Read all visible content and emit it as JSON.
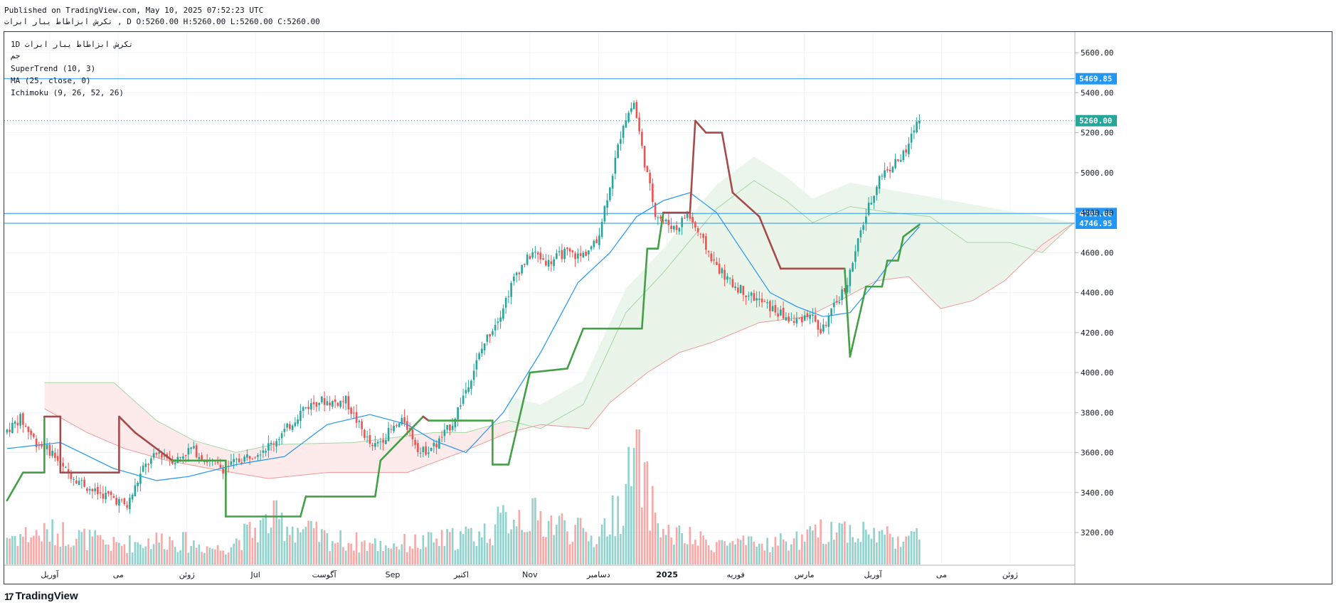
{
  "header": {
    "published": "Published on TradingView.com, May 10, 2025 07:52:23 UTC",
    "ohlc_line": "تكرش ابزاطاط يبار ابرات , D O:5260.00 H:5260.00 L:5260.00 C:5260.00"
  },
  "legend": {
    "symbol": "1D  تكرش ابزاطاط يبار ابرات",
    "exchange": "جم",
    "supertrend": "SuperTrend (10, 3)",
    "ma": "MA (25, close, 0)",
    "ichimoku": "Ichimoku (9, 26, 52, 26)"
  },
  "footer": {
    "brand": "TradingView",
    "logo_icon": "tradingview-logo-icon"
  },
  "colors": {
    "up": "#26a69a",
    "down": "#ef5350",
    "supertrend_up": "#43a047",
    "supertrend_down": "#a64b4b",
    "ma": "#2196f3",
    "cloud_bull": "#e8f5e9",
    "cloud_bear": "#fde8e8",
    "hline": "#2196f3",
    "last_price": "#26a69a"
  },
  "chart_data": {
    "type": "candlestick",
    "ylim": [
      3040,
      5700
    ],
    "y_ticks": [
      3200,
      3400,
      3600,
      3800,
      4000,
      4200,
      4400,
      4600,
      4800,
      5000,
      5200,
      5400,
      5600
    ],
    "x_labels": [
      "آوريل",
      "مى",
      "ژوئن",
      "Jul",
      "آگوست",
      "Sep",
      "اكتبر",
      "Nov",
      "دسامبر",
      "2025",
      "فوريه",
      "مارس",
      "آوريل",
      "مى",
      "ژوئن"
    ],
    "horizontal_lines": [
      {
        "value": 5469.85,
        "label": "5469.85"
      },
      {
        "value": 4795.66,
        "label": "4795.66"
      },
      {
        "value": 4746.95,
        "label": "4746.95"
      }
    ],
    "last_price": {
      "value": 5260.0,
      "label": "5260.00"
    },
    "price_path": [
      [
        0,
        3700
      ],
      [
        6,
        3770
      ],
      [
        12,
        3650
      ],
      [
        18,
        3600
      ],
      [
        22,
        3520
      ],
      [
        28,
        3460
      ],
      [
        34,
        3400
      ],
      [
        40,
        3380
      ],
      [
        46,
        3330
      ],
      [
        52,
        3520
      ],
      [
        58,
        3600
      ],
      [
        64,
        3560
      ],
      [
        70,
        3620
      ],
      [
        76,
        3560
      ],
      [
        82,
        3520
      ],
      [
        88,
        3560
      ],
      [
        94,
        3600
      ],
      [
        100,
        3640
      ],
      [
        106,
        3720
      ],
      [
        112,
        3820
      ],
      [
        118,
        3860
      ],
      [
        124,
        3850
      ],
      [
        128,
        3860
      ],
      [
        132,
        3760
      ],
      [
        138,
        3620
      ],
      [
        144,
        3700
      ],
      [
        150,
        3760
      ],
      [
        156,
        3600
      ],
      [
        162,
        3640
      ],
      [
        168,
        3750
      ],
      [
        174,
        3950
      ],
      [
        180,
        4150
      ],
      [
        186,
        4300
      ],
      [
        192,
        4500
      ],
      [
        198,
        4600
      ],
      [
        204,
        4550
      ],
      [
        210,
        4600
      ],
      [
        216,
        4580
      ],
      [
        222,
        4650
      ],
      [
        228,
        5000
      ],
      [
        232,
        5250
      ],
      [
        236,
        5350
      ],
      [
        240,
        5050
      ],
      [
        244,
        4800
      ],
      [
        248,
        4750
      ],
      [
        252,
        4720
      ],
      [
        256,
        4800
      ],
      [
        260,
        4700
      ],
      [
        266,
        4550
      ],
      [
        272,
        4450
      ],
      [
        278,
        4400
      ],
      [
        284,
        4350
      ],
      [
        290,
        4300
      ],
      [
        296,
        4250
      ],
      [
        302,
        4300
      ],
      [
        306,
        4200
      ],
      [
        310,
        4300
      ],
      [
        316,
        4450
      ],
      [
        322,
        4750
      ],
      [
        328,
        4980
      ],
      [
        334,
        5050
      ],
      [
        338,
        5100
      ],
      [
        342,
        5260
      ]
    ],
    "volume_profile": [
      [
        0,
        0.22
      ],
      [
        20,
        0.25
      ],
      [
        40,
        0.15
      ],
      [
        60,
        0.2
      ],
      [
        80,
        0.12
      ],
      [
        100,
        0.35
      ],
      [
        120,
        0.2
      ],
      [
        140,
        0.15
      ],
      [
        160,
        0.18
      ],
      [
        180,
        0.25
      ],
      [
        190,
        0.4
      ],
      [
        200,
        0.35
      ],
      [
        210,
        0.3
      ],
      [
        220,
        0.2
      ],
      [
        230,
        0.45
      ],
      [
        236,
        0.85
      ],
      [
        240,
        0.55
      ],
      [
        246,
        0.25
      ],
      [
        260,
        0.18
      ],
      [
        280,
        0.15
      ],
      [
        300,
        0.2
      ],
      [
        310,
        0.3
      ],
      [
        320,
        0.25
      ],
      [
        342,
        0.2
      ]
    ],
    "ma_series": [
      [
        0,
        3620
      ],
      [
        20,
        3650
      ],
      [
        40,
        3520
      ],
      [
        56,
        3460
      ],
      [
        68,
        3480
      ],
      [
        86,
        3540
      ],
      [
        104,
        3580
      ],
      [
        120,
        3740
      ],
      [
        136,
        3790
      ],
      [
        150,
        3740
      ],
      [
        160,
        3660
      ],
      [
        172,
        3600
      ],
      [
        186,
        3800
      ],
      [
        200,
        4100
      ],
      [
        214,
        4450
      ],
      [
        226,
        4600
      ],
      [
        236,
        4780
      ],
      [
        246,
        4860
      ],
      [
        256,
        4900
      ],
      [
        266,
        4800
      ],
      [
        276,
        4600
      ],
      [
        286,
        4400
      ],
      [
        296,
        4330
      ],
      [
        306,
        4280
      ],
      [
        316,
        4300
      ],
      [
        326,
        4460
      ],
      [
        336,
        4640
      ],
      [
        342,
        4730
      ]
    ],
    "supertrend_series": [
      [
        0,
        3360
      ],
      [
        6,
        3500
      ],
      [
        14,
        3500
      ],
      [
        14,
        3780
      ],
      [
        20,
        3780
      ],
      [
        20,
        3500
      ],
      [
        42,
        3500
      ],
      [
        42,
        3780
      ],
      [
        48,
        3700
      ],
      [
        62,
        3560
      ],
      [
        82,
        3560
      ],
      [
        82,
        3280
      ],
      [
        110,
        3280
      ],
      [
        112,
        3380
      ],
      [
        138,
        3380
      ],
      [
        140,
        3560
      ],
      [
        156,
        3780
      ],
      [
        158,
        3760
      ],
      [
        182,
        3760
      ],
      [
        182,
        3540
      ],
      [
        188,
        3540
      ],
      [
        196,
        4000
      ],
      [
        210,
        4020
      ],
      [
        216,
        4220
      ],
      [
        238,
        4220
      ],
      [
        240,
        4620
      ],
      [
        244,
        4620
      ],
      [
        246,
        4800
      ],
      [
        256,
        4800
      ],
      [
        258,
        5260
      ],
      [
        262,
        5200
      ],
      [
        268,
        5200
      ],
      [
        272,
        4900
      ],
      [
        282,
        4780
      ],
      [
        290,
        4520
      ],
      [
        314,
        4520
      ],
      [
        316,
        4080
      ],
      [
        322,
        4430
      ],
      [
        328,
        4430
      ],
      [
        330,
        4560
      ],
      [
        334,
        4560
      ],
      [
        336,
        4680
      ],
      [
        342,
        4740
      ]
    ],
    "cloud_upper": [
      [
        14,
        3950
      ],
      [
        40,
        3950
      ],
      [
        56,
        3760
      ],
      [
        70,
        3660
      ],
      [
        86,
        3600
      ],
      [
        100,
        3640
      ],
      [
        130,
        3650
      ],
      [
        160,
        3700
      ],
      [
        172,
        3700
      ],
      [
        188,
        3760
      ],
      [
        200,
        3720
      ],
      [
        216,
        3840
      ],
      [
        232,
        4300
      ],
      [
        246,
        4500
      ],
      [
        256,
        4660
      ],
      [
        266,
        4820
      ],
      [
        280,
        4960
      ],
      [
        292,
        4860
      ],
      [
        302,
        4750
      ],
      [
        316,
        4830
      ],
      [
        332,
        4800
      ],
      [
        346,
        4780
      ],
      [
        360,
        4650
      ],
      [
        376,
        4650
      ],
      [
        388,
        4600
      ],
      [
        400,
        4750
      ]
    ],
    "cloud_lower": [
      [
        14,
        3820
      ],
      [
        30,
        3700
      ],
      [
        44,
        3620
      ],
      [
        60,
        3560
      ],
      [
        80,
        3510
      ],
      [
        98,
        3470
      ],
      [
        120,
        3500
      ],
      [
        150,
        3500
      ],
      [
        170,
        3600
      ],
      [
        188,
        3700
      ],
      [
        200,
        3740
      ],
      [
        218,
        3720
      ],
      [
        226,
        3850
      ],
      [
        240,
        4000
      ],
      [
        252,
        4100
      ],
      [
        264,
        4150
      ],
      [
        282,
        4250
      ],
      [
        300,
        4280
      ],
      [
        312,
        4360
      ],
      [
        326,
        4460
      ],
      [
        338,
        4480
      ],
      [
        350,
        4320
      ],
      [
        362,
        4360
      ],
      [
        374,
        4460
      ],
      [
        388,
        4640
      ],
      [
        400,
        4750
      ]
    ]
  }
}
